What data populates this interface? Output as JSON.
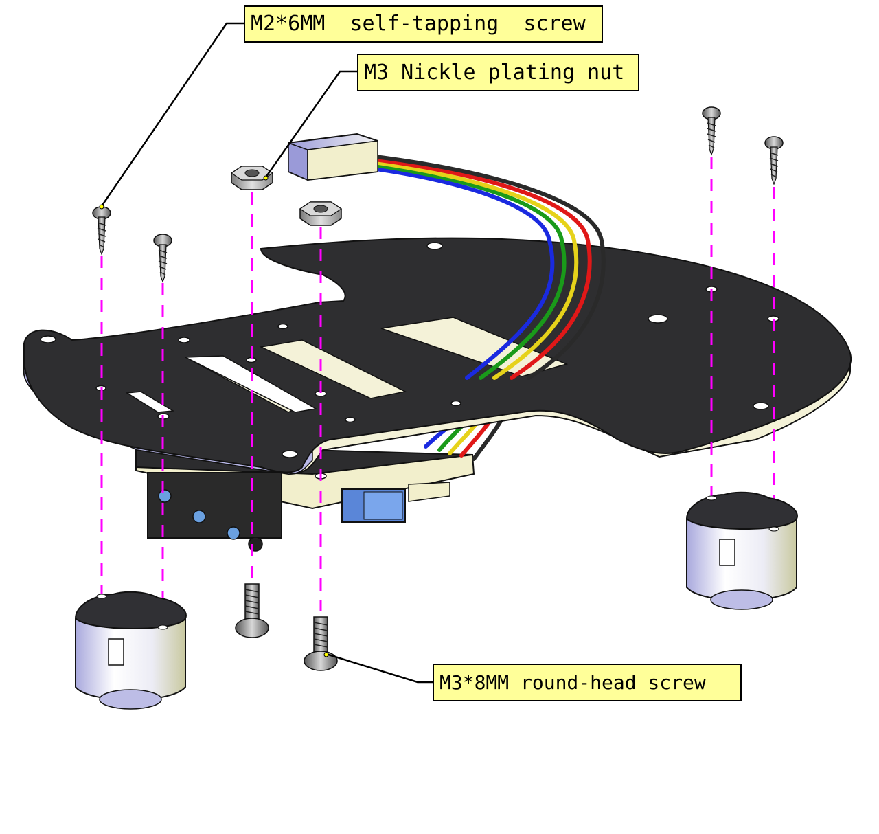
{
  "labels": {
    "self_tapping_screw": "M2*6MM  self-tapping  screw",
    "nickel_nut": "M3 Nickle plating nut",
    "round_head_screw": "M3*8MM round-head screw"
  },
  "colors": {
    "callout_fill": "#ffff99",
    "plate_top": "#2e2e30",
    "plate_edge_light": "#f4f2d8",
    "plate_edge_shadow": "#b8b8e8",
    "guide_line": "#ff00ff",
    "wire_black": "#2a2a2a",
    "wire_red": "#e01818",
    "wire_yellow": "#e6d21a",
    "wire_green": "#1a9a1a",
    "wire_blue": "#1a2ae0"
  },
  "icons": [
    "self-tapping-screw-icon",
    "hex-nut-icon",
    "round-head-screw-icon",
    "caster-wheel-icon",
    "wire-connector-icon",
    "sensor-module-icon"
  ]
}
